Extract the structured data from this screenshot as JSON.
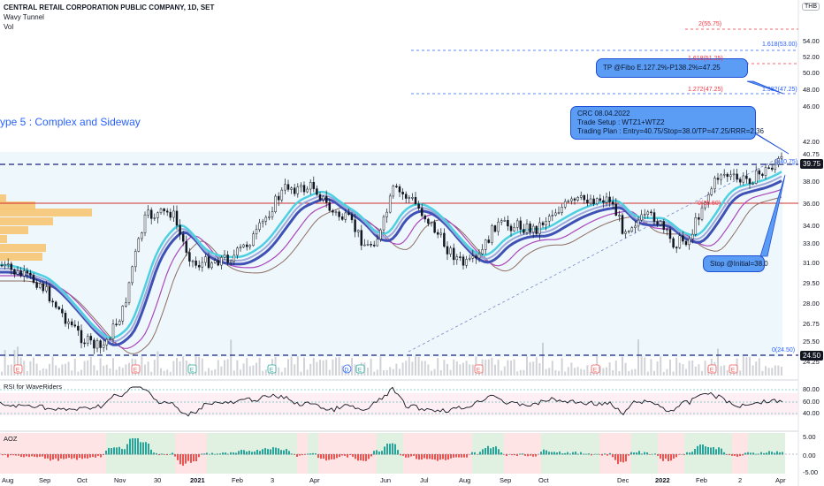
{
  "header": {
    "title": "CENTRAL RETAIL CORPORATION PUBLIC COMPANY, 1D, SET",
    "indicator_1": "Wavy Tunnel",
    "indicator_2": "Vol",
    "currency": "THB"
  },
  "annotations": {
    "type_label": "ype 5 : Complex and Sideway",
    "tp_callout": "TP @Fibo E.127.2%-P138.2%=47.25",
    "plan_lines": [
      "CRC 08.04.2022",
      "Trade Setup : WTZ1+WTZ2",
      "Trading Plan : Entry=40.75/Stop=38.0/TP=47.25/RRR=2.36"
    ],
    "stop_callout": "Stop @Initial=38.0"
  },
  "fib_levels": [
    {
      "label": "2(55.75)",
      "color": "#f23645"
    },
    {
      "label": "1.618(53.00)",
      "color": "#2962ff"
    },
    {
      "label": "1.618(51.25)",
      "color": "#f23645"
    },
    {
      "label": "1.272(47.25)",
      "color": "#f23645"
    },
    {
      "label": "1.382(47.25)",
      "color": "#2962ff"
    },
    {
      "label": "1(40.75)",
      "color": "#2962ff"
    },
    {
      "label": "0(35.50)",
      "color": "#f23645"
    },
    {
      "label": "0(24.50)",
      "color": "#2962ff"
    }
  ],
  "price_axis": {
    "ticks": [
      "54.00",
      "52.00",
      "50.00",
      "48.00",
      "46.00",
      "42.00",
      "40.75",
      "38.00",
      "36.00",
      "34.00",
      "33.00",
      "31.00",
      "29.50",
      "28.00",
      "26.75",
      "25.50",
      "24.25"
    ],
    "current_price": "39.75",
    "low_price": "24.50"
  },
  "rsi": {
    "title": "RSI for WaveRiders",
    "ticks": [
      "80.00",
      "60.00",
      "40.00"
    ]
  },
  "aoz": {
    "title": "AOZ",
    "ticks": [
      "5.00",
      "0.00",
      "-5.00"
    ]
  },
  "time_axis": {
    "labels": [
      "Aug",
      "Sep",
      "Oct",
      "Nov",
      "30",
      "2021",
      "Feb",
      "3",
      "Apr",
      "Jun",
      "Jul",
      "Aug",
      "Sep",
      "Oct",
      "Dec",
      "2022",
      "Feb",
      "2",
      "Apr"
    ]
  },
  "events": [
    "E",
    "E",
    "E",
    "E",
    "D",
    "E",
    "E",
    "E",
    "E",
    "E"
  ],
  "colors": {
    "accent_blue": "#2962ff",
    "callout_fill": "#5b9cf5",
    "tunnel_cyan": "#4dd0e1",
    "tunnel_navy": "#3f51b5",
    "support_red": "#d32f2f",
    "volume_profile": "#f7c26b",
    "bull": "#131722",
    "rsi_line": "#131722",
    "aoz_green": "#26a69a",
    "aoz_red": "#ef5350"
  }
}
